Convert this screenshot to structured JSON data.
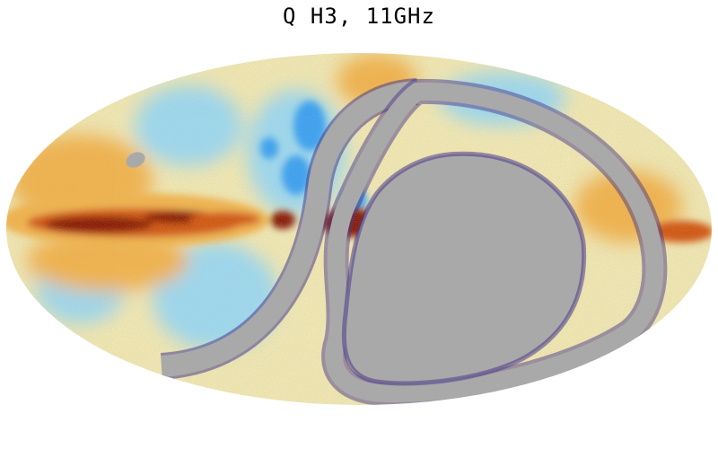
{
  "map": {
    "title": "Q H3, 11GHz",
    "projection": "mollweide",
    "colormap": [
      "#1f3fd0",
      "#3aa0f0",
      "#9fd8ee",
      "#f3e7b0",
      "#f4b24a",
      "#d4550f",
      "#8a1600"
    ],
    "mask_color": "#a9a9a9",
    "background": "#ffffff"
  }
}
